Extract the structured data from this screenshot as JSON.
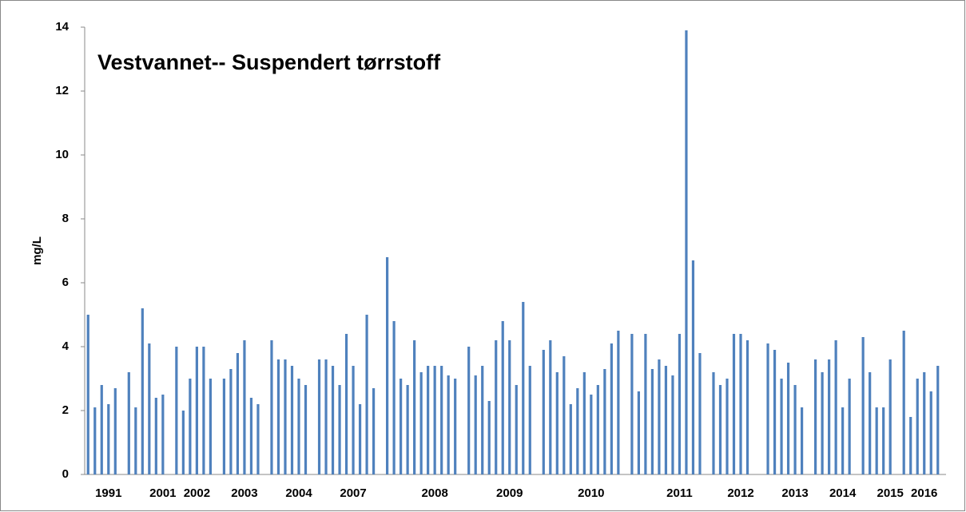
{
  "chart_data": {
    "type": "bar",
    "title": "Vestvannet-- Suspendert tørrstoff",
    "y_label": "mg/L",
    "color": "#4f81bd",
    "grid": false,
    "ylim": [
      0,
      14
    ],
    "yticks": [
      0,
      2,
      4,
      6,
      8,
      10,
      12,
      14
    ],
    "categories": [
      null,
      null,
      null,
      "1991",
      null,
      null,
      null,
      null,
      null,
      null,
      null,
      "2001",
      null,
      null,
      null,
      null,
      "2002",
      null,
      null,
      null,
      null,
      null,
      null,
      "2003",
      null,
      null,
      null,
      null,
      null,
      null,
      null,
      "2004",
      null,
      null,
      null,
      null,
      null,
      null,
      null,
      "2007",
      null,
      null,
      null,
      null,
      null,
      null,
      null,
      null,
      null,
      null,
      null,
      "2008",
      null,
      null,
      null,
      null,
      null,
      null,
      null,
      null,
      null,
      null,
      "2009",
      null,
      null,
      null,
      null,
      null,
      null,
      null,
      null,
      null,
      null,
      null,
      "2010",
      null,
      null,
      null,
      null,
      null,
      null,
      null,
      null,
      null,
      null,
      null,
      null,
      "2011",
      null,
      null,
      null,
      null,
      null,
      null,
      null,
      null,
      "2012",
      null,
      null,
      null,
      null,
      null,
      null,
      null,
      "2013",
      null,
      null,
      null,
      null,
      null,
      null,
      "2014",
      null,
      null,
      null,
      null,
      null,
      null,
      "2015",
      null,
      null,
      null,
      null,
      "2016",
      null,
      null
    ],
    "values": [
      5.0,
      2.1,
      2.8,
      2.2,
      2.7,
      null,
      3.2,
      2.1,
      5.2,
      4.1,
      2.4,
      2.5,
      null,
      4.0,
      2.0,
      3.0,
      4.0,
      4.0,
      3.0,
      null,
      3.0,
      3.3,
      3.8,
      4.2,
      2.4,
      2.2,
      null,
      4.2,
      3.6,
      3.6,
      3.4,
      3.0,
      2.8,
      null,
      3.6,
      3.6,
      3.4,
      2.8,
      4.4,
      3.4,
      2.2,
      5.0,
      2.7,
      null,
      6.8,
      4.8,
      3.0,
      2.8,
      4.2,
      3.2,
      3.4,
      3.4,
      3.4,
      3.1,
      3.0,
      null,
      4.0,
      3.1,
      3.4,
      2.3,
      4.2,
      4.8,
      4.2,
      2.8,
      5.4,
      3.4,
      null,
      3.9,
      4.2,
      3.2,
      3.7,
      2.2,
      2.7,
      3.2,
      2.5,
      2.8,
      3.3,
      4.1,
      4.5,
      null,
      4.4,
      2.6,
      4.4,
      3.3,
      3.6,
      3.4,
      3.1,
      4.4,
      13.9,
      6.7,
      3.8,
      null,
      3.2,
      2.8,
      3.0,
      4.4,
      4.4,
      4.2,
      null,
      null,
      4.1,
      3.9,
      3.0,
      3.5,
      2.8,
      2.1,
      null,
      3.6,
      3.2,
      3.6,
      4.2,
      2.1,
      3.0,
      null,
      4.3,
      3.2,
      2.1,
      2.1,
      3.6,
      null,
      4.5,
      1.8,
      3.0,
      3.2,
      2.6,
      3.4
    ]
  }
}
